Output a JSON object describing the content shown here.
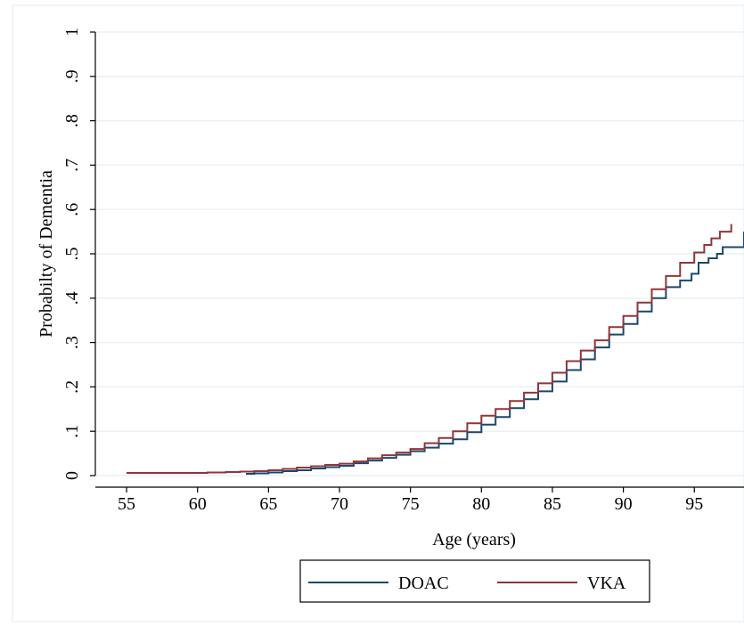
{
  "chart_data": {
    "type": "line",
    "title": "",
    "xlabel": "Age (years)",
    "ylabel": "Probabilty of Dementia",
    "xlim": [
      52.8,
      98.5
    ],
    "ylim": [
      0,
      1
    ],
    "x_ticks": [
      55,
      60,
      65,
      70,
      75,
      80,
      85,
      90,
      95
    ],
    "x_tick_labels": [
      "55",
      "60",
      "65",
      "70",
      "75",
      "80",
      "85",
      "90",
      "95"
    ],
    "y_ticks": [
      0,
      0.1,
      0.2,
      0.3,
      0.4,
      0.5,
      0.6,
      0.7,
      0.8,
      0.9,
      1
    ],
    "y_tick_labels": [
      "0",
      ".1",
      ".2",
      ".3",
      ".4",
      ".5",
      ".6",
      ".7",
      ".8",
      ".9",
      "1"
    ],
    "grid": true,
    "legend_position": "bottom-center",
    "series": [
      {
        "name": "DOAC",
        "color": "#1a476f",
        "x": [
          63.4,
          64,
          65,
          66,
          67,
          68,
          69,
          70,
          71,
          72,
          73,
          74,
          75,
          76,
          77,
          78,
          79,
          80,
          81,
          82,
          83,
          84,
          85,
          86,
          87,
          88,
          89,
          90,
          91,
          92,
          93,
          94,
          94.8,
          95.3,
          96,
          96.6,
          97,
          98.5
        ],
        "y": [
          0.004,
          0.005,
          0.007,
          0.01,
          0.012,
          0.016,
          0.019,
          0.022,
          0.028,
          0.034,
          0.04,
          0.047,
          0.055,
          0.063,
          0.072,
          0.082,
          0.098,
          0.115,
          0.132,
          0.152,
          0.172,
          0.19,
          0.212,
          0.238,
          0.262,
          0.289,
          0.318,
          0.342,
          0.37,
          0.4,
          0.425,
          0.44,
          0.455,
          0.48,
          0.49,
          0.5,
          0.515,
          0.55
        ]
      },
      {
        "name": "VKA",
        "color": "#90353b",
        "x": [
          55,
          57,
          59,
          60.7,
          62,
          63,
          64,
          65,
          66,
          67,
          68,
          69,
          70,
          71,
          72,
          73,
          74,
          75,
          76,
          77,
          78,
          79,
          80,
          81,
          82,
          83,
          84,
          85,
          86,
          87,
          88,
          89,
          90,
          91,
          92,
          93,
          94,
          95,
          95.7,
          96.2,
          96.8,
          97.6
        ],
        "y": [
          0.006,
          0.006,
          0.006,
          0.007,
          0.008,
          0.009,
          0.01,
          0.012,
          0.015,
          0.018,
          0.021,
          0.024,
          0.027,
          0.032,
          0.039,
          0.046,
          0.052,
          0.06,
          0.073,
          0.085,
          0.1,
          0.118,
          0.135,
          0.15,
          0.168,
          0.187,
          0.208,
          0.232,
          0.258,
          0.282,
          0.305,
          0.335,
          0.36,
          0.39,
          0.42,
          0.45,
          0.48,
          0.503,
          0.52,
          0.535,
          0.55,
          0.567
        ]
      }
    ]
  }
}
